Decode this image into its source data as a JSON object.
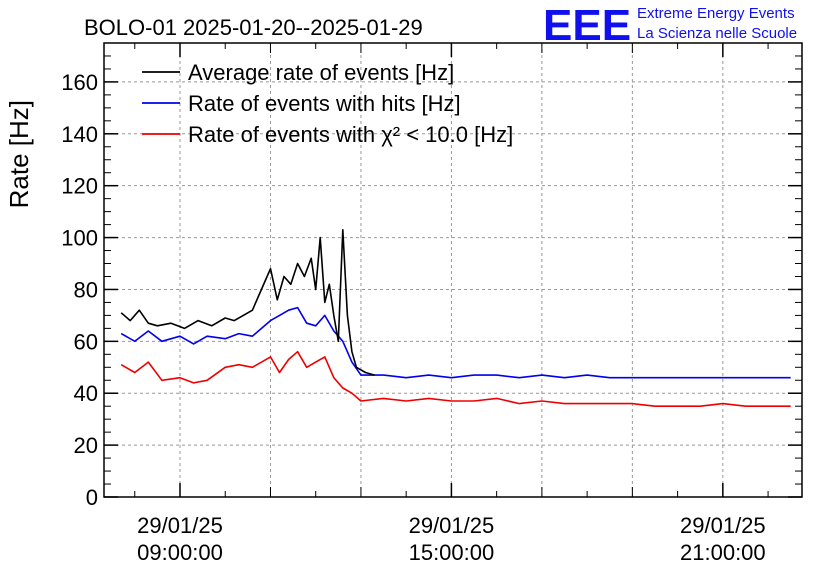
{
  "chart_data": {
    "type": "line",
    "title": "BOLO-01 2025-01-20--2025-01-29",
    "ylabel": "Rate [Hz]",
    "xlabel": "",
    "ylim": [
      0,
      175
    ],
    "y_ticks": [
      0,
      20,
      40,
      60,
      80,
      100,
      120,
      140,
      160
    ],
    "x_ticks": [
      {
        "date": "29/01/25",
        "time": "09:00:00",
        "hour": 9
      },
      {
        "date": "29/01/25",
        "time": "15:00:00",
        "hour": 15
      },
      {
        "date": "29/01/25",
        "time": "21:00:00",
        "hour": 21
      }
    ],
    "xlim_hours": [
      7.32,
      22.75
    ],
    "grid": true,
    "legend_position": "top-left",
    "series": [
      {
        "name": "Average rate of events [Hz]",
        "color": "#000000",
        "x": [
          7.7,
          7.9,
          8.1,
          8.3,
          8.5,
          8.8,
          9.1,
          9.4,
          9.7,
          10.0,
          10.2,
          10.4,
          10.6,
          10.8,
          11.0,
          11.15,
          11.3,
          11.45,
          11.6,
          11.75,
          11.9,
          12.0,
          12.1,
          12.2,
          12.3,
          12.4,
          12.5,
          12.6,
          12.7,
          12.8,
          12.9,
          13.0,
          13.1,
          13.3
        ],
        "y": [
          71,
          68,
          72,
          67,
          66,
          67,
          65,
          68,
          66,
          69,
          68,
          70,
          72,
          80,
          88,
          76,
          85,
          82,
          90,
          85,
          92,
          80,
          100,
          75,
          82,
          70,
          60,
          103,
          70,
          56,
          50,
          49,
          48,
          47
        ]
      },
      {
        "name": "Rate of events with hits [Hz]",
        "color": "#0000ee",
        "x": [
          7.7,
          8.0,
          8.3,
          8.6,
          9.0,
          9.3,
          9.6,
          10.0,
          10.3,
          10.6,
          11.0,
          11.2,
          11.4,
          11.6,
          11.8,
          12.0,
          12.2,
          12.4,
          12.6,
          12.8,
          13.0,
          13.5,
          14.0,
          14.5,
          15.0,
          15.5,
          16.0,
          16.5,
          17.0,
          17.5,
          18.0,
          18.5,
          19.0,
          19.5,
          20.0,
          20.5,
          21.0,
          21.5,
          22.0,
          22.5
        ],
        "y": [
          63,
          60,
          64,
          60,
          62,
          59,
          62,
          61,
          63,
          62,
          68,
          70,
          72,
          73,
          67,
          66,
          70,
          64,
          60,
          52,
          47,
          47,
          46,
          47,
          46,
          47,
          47,
          46,
          47,
          46,
          47,
          46,
          46,
          46,
          46,
          46,
          46,
          46,
          46,
          46
        ]
      },
      {
        "name": "Rate of events with χ² < 10.0 [Hz]",
        "color": "#ee0000",
        "x": [
          7.7,
          8.0,
          8.3,
          8.6,
          9.0,
          9.3,
          9.6,
          10.0,
          10.3,
          10.6,
          11.0,
          11.2,
          11.4,
          11.6,
          11.8,
          12.0,
          12.2,
          12.4,
          12.6,
          12.8,
          13.0,
          13.5,
          14.0,
          14.5,
          15.0,
          15.5,
          16.0,
          16.5,
          17.0,
          17.5,
          18.0,
          18.5,
          19.0,
          19.5,
          20.0,
          20.5,
          21.0,
          21.5,
          22.0,
          22.5
        ],
        "y": [
          51,
          48,
          52,
          45,
          46,
          44,
          45,
          50,
          51,
          50,
          54,
          48,
          53,
          56,
          50,
          52,
          54,
          46,
          42,
          40,
          37,
          38,
          37,
          38,
          37,
          37,
          38,
          36,
          37,
          36,
          36,
          36,
          36,
          35,
          35,
          35,
          36,
          35,
          35,
          35
        ]
      }
    ]
  },
  "logo": {
    "mark": "EEE",
    "line1": "Extreme Energy Events",
    "line2": "La Scienza nelle Scuole",
    "color": "#1010ee"
  }
}
